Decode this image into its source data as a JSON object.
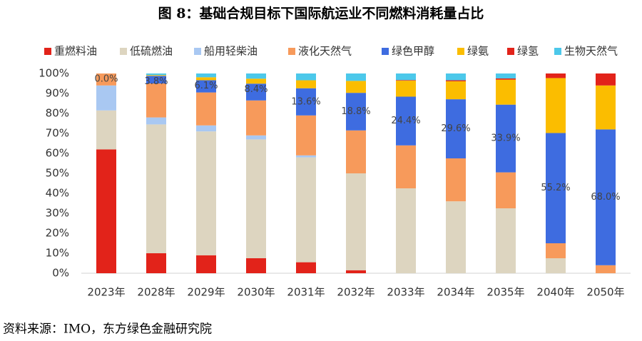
{
  "chart_data": {
    "type": "stacked-bar",
    "title": "图 8：基础合规目标下国际航运业不同燃料消耗量占比",
    "source": "资料来源：IMO，东方绿色金融研究院",
    "categories": [
      "2023年",
      "2028年",
      "2029年",
      "2030年",
      "2031年",
      "2032年",
      "2033年",
      "2034年",
      "2035年",
      "2040年",
      "2050年"
    ],
    "ylim": [
      0,
      100
    ],
    "yticks": [
      {
        "value": 0,
        "label": "0%"
      },
      {
        "value": 10,
        "label": "10%"
      },
      {
        "value": 20,
        "label": "20%"
      },
      {
        "value": 30,
        "label": "30%"
      },
      {
        "value": 40,
        "label": "40%"
      },
      {
        "value": 50,
        "label": "50%"
      },
      {
        "value": 60,
        "label": "60%"
      },
      {
        "value": 70,
        "label": "70%"
      },
      {
        "value": 80,
        "label": "80%"
      },
      {
        "value": 90,
        "label": "90%"
      },
      {
        "value": 100,
        "label": "100%"
      }
    ],
    "grid": false,
    "series": [
      {
        "name": "重燃料油",
        "color": "#e2231a",
        "values": [
          62,
          10,
          9,
          7.5,
          5.5,
          1.5,
          0,
          0,
          0,
          0,
          0
        ]
      },
      {
        "name": "低硫燃油",
        "color": "#ddd5c0",
        "values": [
          19.5,
          64.5,
          62,
          59.5,
          52.5,
          48.5,
          42.5,
          36,
          32.5,
          7.5,
          0
        ]
      },
      {
        "name": "船用轻柴油",
        "color": "#a9c8f2",
        "values": [
          12.5,
          3.5,
          3,
          2,
          1,
          0,
          0,
          0,
          0,
          0,
          0
        ]
      },
      {
        "name": "液化天然气",
        "color": "#f79a5b",
        "values": [
          6,
          17,
          16.5,
          17.5,
          20,
          21.5,
          21.5,
          21.5,
          18,
          7.5,
          4
        ]
      },
      {
        "name": "绿色甲醇",
        "color": "#3e6ce0",
        "values": [
          0,
          3.8,
          6.1,
          8.4,
          13.6,
          18.8,
          24.4,
          29.6,
          33.9,
          55.2,
          68.0
        ],
        "value_labels": [
          "0.0%",
          "3.8%",
          "6.1%",
          "8.4%",
          "13.6%",
          "18.8%",
          "24.4%",
          "29.6%",
          "33.9%",
          "55.2%",
          "68.0%"
        ]
      },
      {
        "name": "绿氨",
        "color": "#fbbd00",
        "values": [
          0,
          0.4,
          1.5,
          2.5,
          4,
          6,
          8,
          9,
          12.5,
          27.5,
          22
        ]
      },
      {
        "name": "绿氢",
        "color": "#e2231a",
        "values": [
          0,
          0,
          0,
          0,
          0,
          0,
          0.3,
          0.5,
          0.6,
          2.3,
          6
        ]
      },
      {
        "name": "生物天然气",
        "color": "#4cc8ea",
        "values": [
          0,
          0.8,
          1.9,
          2.6,
          3.4,
          3.7,
          3.3,
          3.4,
          2.5,
          0,
          0
        ]
      }
    ]
  }
}
